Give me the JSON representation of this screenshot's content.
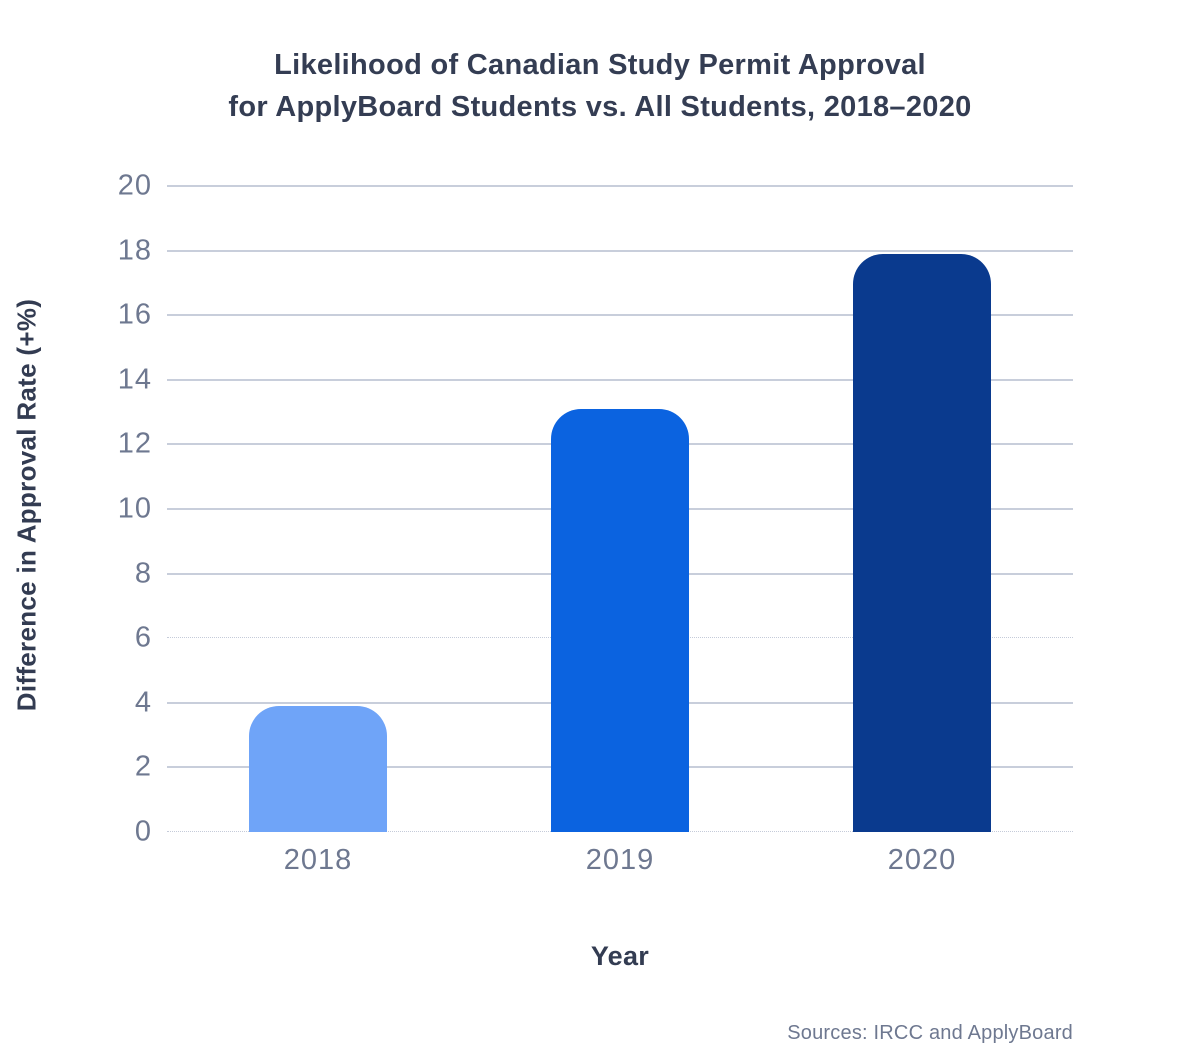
{
  "figure": {
    "source_note": "Sources: IRCC and ApplyBoard"
  },
  "chart_data": {
    "type": "bar",
    "title": "Likelihood of Canadian Study Permit Approval\nfor ApplyBoard Students vs. All Students, 2018–2020",
    "categories": [
      "2018",
      "2019",
      "2020"
    ],
    "values": [
      3.9,
      13.1,
      17.9
    ],
    "xlabel": "Year",
    "ylabel": "Difference in Approval Rate (+%)",
    "ylim": [
      0,
      20
    ],
    "yticks": [
      20,
      18,
      16,
      14,
      12,
      10,
      8,
      6,
      4,
      2,
      0
    ],
    "grid": "horizontal",
    "legend": "none",
    "bar_colors": [
      "#6FA4F8",
      "#0B63E0",
      "#0A3A8E"
    ],
    "gridline_color": "#C8CEDB",
    "thin_gridlines_at": [
      6,
      0
    ],
    "text_colors": {
      "title": "#343D53",
      "axis_titles": "#333C52",
      "tick_labels": "#6E7890",
      "source": "#6E7890"
    }
  }
}
